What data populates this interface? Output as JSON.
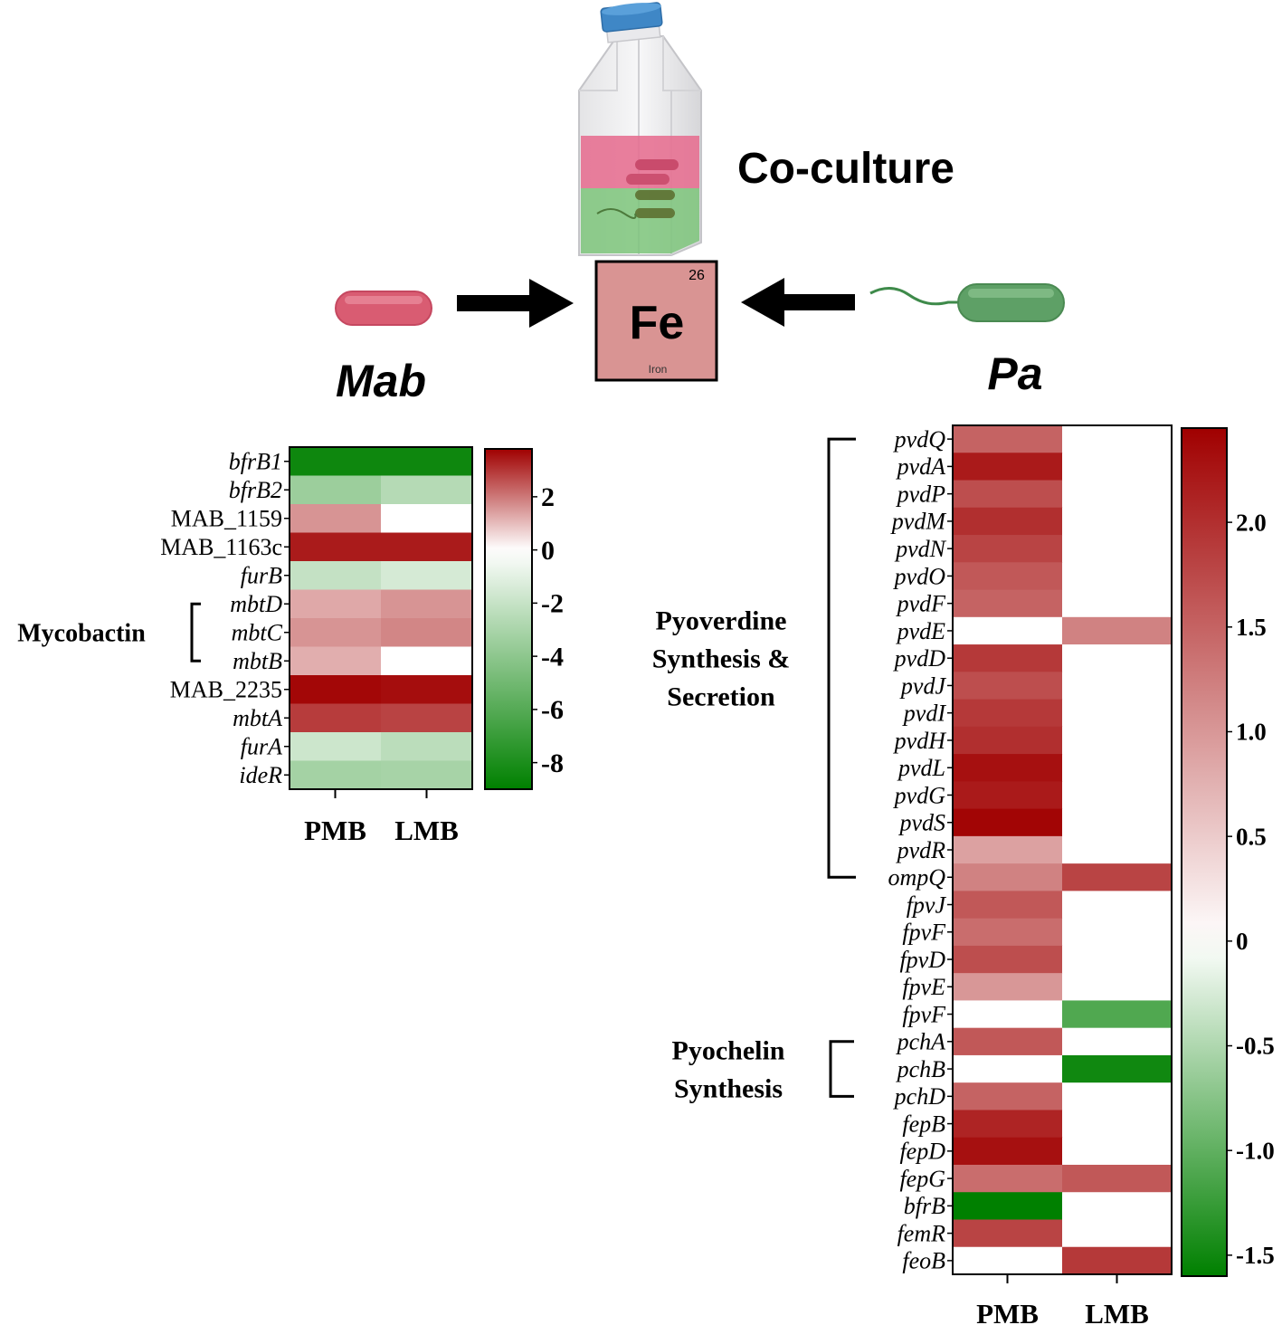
{
  "header": {
    "coculture_label": "Co-culture",
    "mab_label": "Mab",
    "pa_label": "Pa"
  },
  "element_tile": {
    "symbol": "Fe",
    "atomic_number": "26",
    "name": "Iron",
    "fill": "#d99493"
  },
  "icons": {
    "flask": "culture-flask-icon",
    "mab_cell": "rod-bacterium-icon",
    "pa_cell": "flagellated-bacterium-icon",
    "arrows": "arrow-icon"
  },
  "colors": {
    "mab_cell": "#d95c72",
    "pa_cell": "#5ea066",
    "positive_max": "#a00000",
    "neutral": "#ffffff",
    "negative_max": "#008000"
  },
  "chart_data": [
    {
      "type": "heatmap",
      "organism": "Mab",
      "columns": [
        "PMB",
        "LMB"
      ],
      "rows": [
        "bfrB1",
        "bfrB2",
        "MAB_1159",
        "MAB_1163c",
        "furB",
        "mbtD",
        "mbtC",
        "mbtB",
        "MAB_2235",
        "mbtA",
        "furA",
        "ideR"
      ],
      "italic_rows": [
        "bfrB1",
        "bfrB2",
        "furB",
        "mbtD",
        "mbtC",
        "mbtB",
        "mbtA",
        "furA",
        "ideR"
      ],
      "values": [
        [
          -8.5,
          -8.5
        ],
        [
          -3.5,
          -2.6
        ],
        [
          1.6,
          0
        ],
        [
          3.4,
          3.4
        ],
        [
          -2.1,
          -1.5
        ],
        [
          1.3,
          1.6
        ],
        [
          1.6,
          1.8
        ],
        [
          1.2,
          0
        ],
        [
          3.7,
          3.6
        ],
        [
          2.9,
          2.8
        ],
        [
          -1.8,
          -2.4
        ],
        [
          -3.2,
          -3.1
        ]
      ],
      "colorbar": {
        "min": -9,
        "max": 3.8,
        "ticks": [
          2,
          0,
          -2,
          -4,
          -6,
          -8
        ]
      },
      "groups": [
        {
          "label": "Mycobactin",
          "from": "mbtD",
          "to": "mbtB"
        }
      ]
    },
    {
      "type": "heatmap",
      "organism": "Pa",
      "columns": [
        "PMB",
        "LMB"
      ],
      "rows": [
        "pvdQ",
        "pvdA",
        "pvdP",
        "pvdM",
        "pvdN",
        "pvdO",
        "pvdF",
        "pvdE",
        "pvdD",
        "pvdJ",
        "pvdI",
        "pvdH",
        "pvdL",
        "pvdG",
        "pvdS",
        "pvdR",
        "ompQ",
        "fpvJ",
        "fpvF",
        "fpvD",
        "fpvE",
        "fpvF",
        "pchA",
        "pchB",
        "pchD",
        "fepB",
        "fepD",
        "fepG",
        "bfrB",
        "femR",
        "feoB"
      ],
      "italic_rows": "all",
      "values": [
        [
          1.5,
          0
        ],
        [
          2.2,
          0
        ],
        [
          1.7,
          0
        ],
        [
          2.0,
          0
        ],
        [
          1.8,
          0
        ],
        [
          1.6,
          0
        ],
        [
          1.5,
          0
        ],
        [
          0,
          1.2
        ],
        [
          1.9,
          0
        ],
        [
          1.7,
          0
        ],
        [
          1.9,
          0
        ],
        [
          2.0,
          0
        ],
        [
          2.3,
          0
        ],
        [
          2.2,
          0
        ],
        [
          2.4,
          0
        ],
        [
          0.9,
          0
        ],
        [
          1.2,
          1.8
        ],
        [
          1.6,
          0
        ],
        [
          1.4,
          0
        ],
        [
          1.7,
          0
        ],
        [
          1.0,
          0
        ],
        [
          0,
          -1.1
        ],
        [
          1.6,
          0
        ],
        [
          0,
          -1.5
        ],
        [
          1.5,
          0
        ],
        [
          2.1,
          0
        ],
        [
          2.3,
          0
        ],
        [
          1.4,
          1.6
        ],
        [
          -1.6,
          0
        ],
        [
          1.8,
          0
        ],
        [
          0,
          1.9
        ]
      ],
      "colorbar": {
        "min": -1.6,
        "max": 2.45,
        "ticks": [
          2.0,
          1.5,
          1.0,
          0.5,
          0,
          -0.5,
          -1.0,
          -1.5
        ],
        "tick_labels": [
          "2.0",
          "1.5",
          "1.0",
          "0.5",
          "0",
          "-0.5",
          "-1.0",
          "-1.5"
        ]
      },
      "groups": [
        {
          "label": [
            "Pyoverdine",
            "Synthesis &",
            "Secretion"
          ],
          "from": "pvdQ",
          "to": "ompQ"
        },
        {
          "label": [
            "Pyochelin",
            "Synthesis"
          ],
          "from": "pchA",
          "to": "pchD"
        }
      ]
    }
  ]
}
